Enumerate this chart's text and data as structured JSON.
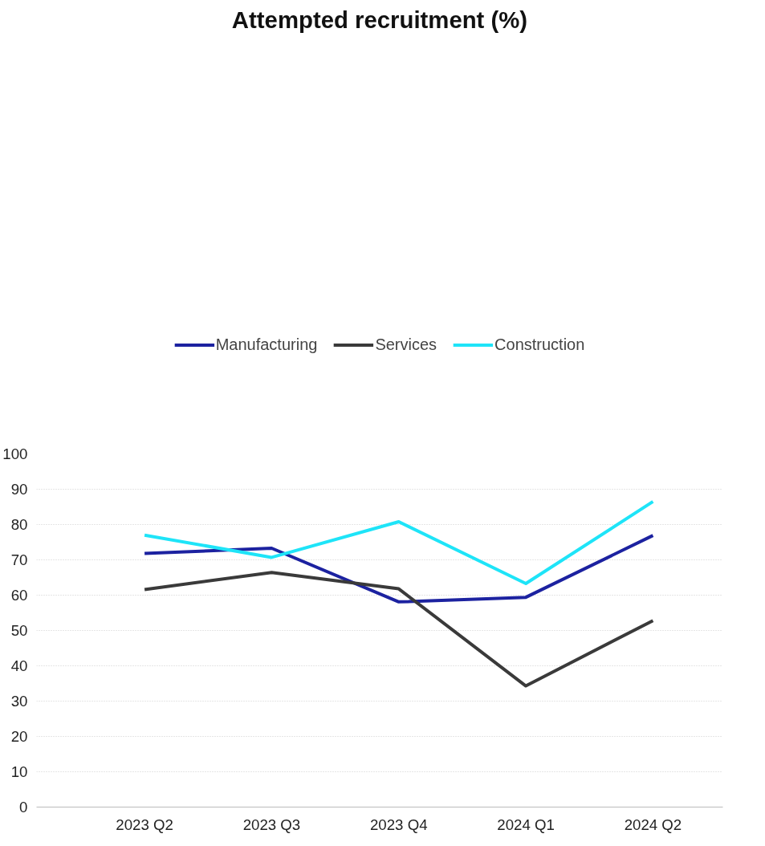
{
  "chart_data": {
    "type": "line",
    "title": "Attempted recruitment (%)",
    "categories": [
      "2023 Q2",
      "2023 Q3",
      "2023 Q4",
      "2024 Q1",
      "2024 Q2"
    ],
    "series": [
      {
        "name": "Manufacturing",
        "color": "#1c22a0",
        "values": [
          71.8,
          73.3,
          58.1,
          59.4,
          76.9
        ]
      },
      {
        "name": "Services",
        "color": "#3a3a3a",
        "values": [
          61.6,
          66.4,
          61.8,
          34.3,
          52.8
        ]
      },
      {
        "name": "Construction",
        "color": "#1ee4f8",
        "values": [
          77.0,
          70.7,
          80.8,
          63.3,
          86.5
        ]
      }
    ],
    "ylim": [
      0,
      100
    ],
    "yticks": [
      0,
      10,
      20,
      30,
      40,
      50,
      60,
      70,
      80,
      90,
      100
    ],
    "grid": "y",
    "legend": "top",
    "marker": "none",
    "line_style": "solid"
  }
}
